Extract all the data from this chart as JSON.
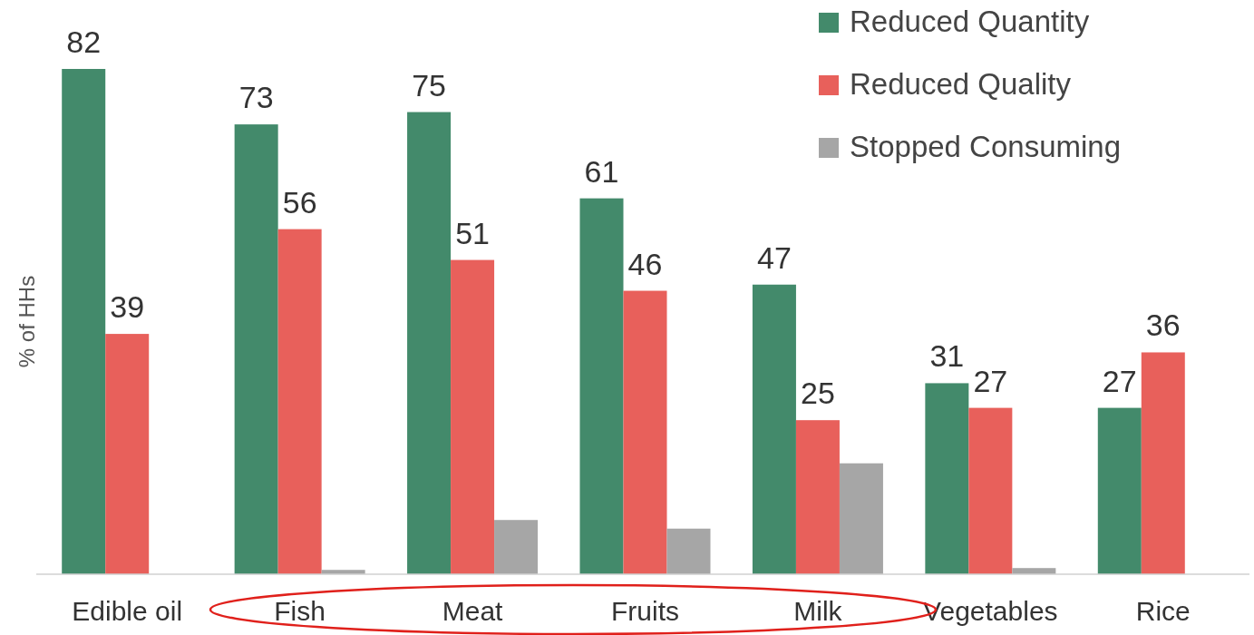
{
  "chart_data": {
    "type": "bar",
    "ylabel": "% of HHs",
    "categories": [
      "Edible oil",
      "Fish",
      "Meat",
      "Fruits",
      "Milk",
      "Vegetables",
      "Rice"
    ],
    "series": [
      {
        "name": "Reduced Quantity",
        "color": "#438a6b",
        "values": [
          82,
          73,
          75,
          61,
          47,
          31,
          27
        ],
        "value_labels": [
          "82",
          "73",
          "75",
          "61",
          "47",
          "31",
          "27"
        ]
      },
      {
        "name": "Reduced Quality",
        "color": "#e8605b",
        "values": [
          39,
          56,
          51,
          46,
          25,
          27,
          36
        ],
        "value_labels": [
          "39",
          "56",
          "51",
          "46",
          "25",
          "27",
          "36"
        ]
      },
      {
        "name": "Stopped Consuming",
        "color": "#a6a6a6",
        "values": [
          null,
          0.7,
          8.8,
          7.4,
          18,
          1,
          null
        ],
        "value_labels": [
          null,
          null,
          null,
          null,
          null,
          null,
          null
        ]
      }
    ],
    "legend": "top right"
  }
}
